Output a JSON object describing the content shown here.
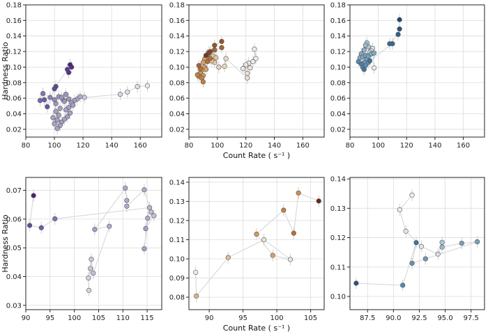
{
  "chart_data": [
    {
      "type": "scatter",
      "xlabel": "",
      "ylabel": "Hardness Ratio",
      "xlim": [
        80,
        175
      ],
      "ylim": [
        0.01,
        0.18
      ],
      "xticks": [
        80,
        100,
        120,
        140,
        160
      ],
      "yticks": [
        0.02,
        0.04,
        0.06,
        0.08,
        0.1,
        0.12,
        0.14,
        0.16,
        0.18
      ],
      "x_tick_labels": [
        "80",
        "100",
        "120",
        "140",
        "160"
      ],
      "y_tick_labels": [
        "0.02",
        "0.04",
        "0.06",
        "0.08",
        "0.10",
        "0.12",
        "0.14",
        "0.16",
        "0.18"
      ],
      "colormap": [
        "#e8e8ee",
        "#a8a5c8",
        "#6b5aa8",
        "#4a2380"
      ],
      "connected": true,
      "points": [
        {
          "x": 165,
          "y": 0.076,
          "c": 0.0
        },
        {
          "x": 158,
          "y": 0.075,
          "c": 0.05
        },
        {
          "x": 151,
          "y": 0.068,
          "c": 0.05
        },
        {
          "x": 146,
          "y": 0.065,
          "c": 0.08
        },
        {
          "x": 121,
          "y": 0.061,
          "c": 0.15
        },
        {
          "x": 116,
          "y": 0.059,
          "c": 0.3
        },
        {
          "x": 118,
          "y": 0.062,
          "c": 0.3
        },
        {
          "x": 114,
          "y": 0.057,
          "c": 0.35
        },
        {
          "x": 112,
          "y": 0.054,
          "c": 0.35
        },
        {
          "x": 110,
          "y": 0.048,
          "c": 0.35
        },
        {
          "x": 113,
          "y": 0.051,
          "c": 0.35
        },
        {
          "x": 108,
          "y": 0.045,
          "c": 0.35
        },
        {
          "x": 111,
          "y": 0.041,
          "c": 0.35
        },
        {
          "x": 109,
          "y": 0.036,
          "c": 0.35
        },
        {
          "x": 105,
          "y": 0.029,
          "c": 0.35
        },
        {
          "x": 107,
          "y": 0.033,
          "c": 0.35
        },
        {
          "x": 104,
          "y": 0.025,
          "c": 0.35
        },
        {
          "x": 102,
          "y": 0.021,
          "c": 0.35
        },
        {
          "x": 103,
          "y": 0.038,
          "c": 0.35
        },
        {
          "x": 101,
          "y": 0.043,
          "c": 0.35
        },
        {
          "x": 104,
          "y": 0.047,
          "c": 0.35
        },
        {
          "x": 102,
          "y": 0.032,
          "c": 0.35
        },
        {
          "x": 100,
          "y": 0.027,
          "c": 0.35
        },
        {
          "x": 99,
          "y": 0.035,
          "c": 0.35
        },
        {
          "x": 101,
          "y": 0.053,
          "c": 0.4
        },
        {
          "x": 103,
          "y": 0.062,
          "c": 0.4
        },
        {
          "x": 106,
          "y": 0.058,
          "c": 0.4
        },
        {
          "x": 108,
          "y": 0.065,
          "c": 0.4
        },
        {
          "x": 110,
          "y": 0.059,
          "c": 0.4
        },
        {
          "x": 107,
          "y": 0.056,
          "c": 0.4
        },
        {
          "x": 105,
          "y": 0.061,
          "c": 0.4
        },
        {
          "x": 100,
          "y": 0.058,
          "c": 0.45
        },
        {
          "x": 97,
          "y": 0.061,
          "c": 0.5
        },
        {
          "x": 92,
          "y": 0.066,
          "c": 0.55
        },
        {
          "x": 90,
          "y": 0.057,
          "c": 0.6
        },
        {
          "x": 93,
          "y": 0.058,
          "c": 0.65
        },
        {
          "x": 95,
          "y": 0.049,
          "c": 0.7
        },
        {
          "x": 100,
          "y": 0.072,
          "c": 0.75
        },
        {
          "x": 101,
          "y": 0.075,
          "c": 0.8
        },
        {
          "x": 109,
          "y": 0.097,
          "c": 0.85
        },
        {
          "x": 110,
          "y": 0.093,
          "c": 0.9
        },
        {
          "x": 112,
          "y": 0.1,
          "c": 0.95
        },
        {
          "x": 111,
          "y": 0.103,
          "c": 1.0
        }
      ]
    },
    {
      "type": "scatter",
      "xlabel": "Count Rate ( s⁻¹ )",
      "ylabel": "",
      "xlim": [
        80,
        175
      ],
      "ylim": [
        0.01,
        0.18
      ],
      "xticks": [
        80,
        100,
        120,
        140,
        160
      ],
      "yticks": [
        0.02,
        0.04,
        0.06,
        0.08,
        0.1,
        0.12,
        0.14,
        0.16,
        0.18
      ],
      "x_tick_labels": [
        "80",
        "100",
        "120",
        "140",
        "160"
      ],
      "y_tick_labels": [
        "0.02",
        "0.04",
        "0.06",
        "0.08",
        "0.10",
        "0.12",
        "0.14",
        "0.16",
        "0.18"
      ],
      "colormap": [
        "#ececec",
        "#e8c9a4",
        "#d08a45",
        "#6a2812"
      ],
      "connected": true,
      "points": [
        {
          "x": 126,
          "y": 0.123,
          "c": 0.0
        },
        {
          "x": 127,
          "y": 0.111,
          "c": 0.0
        },
        {
          "x": 125,
          "y": 0.107,
          "c": 0.0
        },
        {
          "x": 122,
          "y": 0.105,
          "c": 0.05
        },
        {
          "x": 120,
          "y": 0.103,
          "c": 0.05
        },
        {
          "x": 123,
          "y": 0.099,
          "c": 0.05
        },
        {
          "x": 118,
          "y": 0.098,
          "c": 0.05
        },
        {
          "x": 121,
          "y": 0.092,
          "c": 0.1
        },
        {
          "x": 121,
          "y": 0.086,
          "c": 0.1
        },
        {
          "x": 106,
          "y": 0.111,
          "c": 0.2
        },
        {
          "x": 105,
          "y": 0.101,
          "c": 0.2
        },
        {
          "x": 101,
          "y": 0.1,
          "c": 0.25
        },
        {
          "x": 98,
          "y": 0.106,
          "c": 0.3
        },
        {
          "x": 96,
          "y": 0.108,
          "c": 0.35
        },
        {
          "x": 97,
          "y": 0.114,
          "c": 0.35
        },
        {
          "x": 99,
          "y": 0.112,
          "c": 0.35
        },
        {
          "x": 94,
          "y": 0.119,
          "c": 0.5
        },
        {
          "x": 93,
          "y": 0.116,
          "c": 0.5
        },
        {
          "x": 92,
          "y": 0.113,
          "c": 0.5
        },
        {
          "x": 91,
          "y": 0.11,
          "c": 0.55
        },
        {
          "x": 90,
          "y": 0.106,
          "c": 0.55
        },
        {
          "x": 91,
          "y": 0.1,
          "c": 0.55
        },
        {
          "x": 92,
          "y": 0.097,
          "c": 0.55
        },
        {
          "x": 89,
          "y": 0.096,
          "c": 0.6
        },
        {
          "x": 88,
          "y": 0.092,
          "c": 0.6
        },
        {
          "x": 90,
          "y": 0.089,
          "c": 0.6
        },
        {
          "x": 87,
          "y": 0.088,
          "c": 0.65
        },
        {
          "x": 89,
          "y": 0.086,
          "c": 0.7
        },
        {
          "x": 90,
          "y": 0.081,
          "c": 0.7
        },
        {
          "x": 86,
          "y": 0.09,
          "c": 0.7
        },
        {
          "x": 88,
          "y": 0.098,
          "c": 0.75
        },
        {
          "x": 87,
          "y": 0.102,
          "c": 0.8
        },
        {
          "x": 93,
          "y": 0.107,
          "c": 0.75
        },
        {
          "x": 95,
          "y": 0.111,
          "c": 0.75
        },
        {
          "x": 98,
          "y": 0.122,
          "c": 0.8
        },
        {
          "x": 103,
          "y": 0.125,
          "c": 0.8
        },
        {
          "x": 103,
          "y": 0.133,
          "c": 0.85
        },
        {
          "x": 98,
          "y": 0.128,
          "c": 0.85
        },
        {
          "x": 94,
          "y": 0.118,
          "c": 0.9
        },
        {
          "x": 92,
          "y": 0.115,
          "c": 0.95
        },
        {
          "x": 95,
          "y": 0.12,
          "c": 0.9
        }
      ]
    },
    {
      "type": "scatter",
      "xlabel": "",
      "ylabel": "",
      "xlim": [
        80,
        175
      ],
      "ylim": [
        0.01,
        0.18
      ],
      "xticks": [
        80,
        100,
        120,
        140,
        160
      ],
      "yticks": [
        0.02,
        0.04,
        0.06,
        0.08,
        0.1,
        0.12,
        0.14,
        0.16,
        0.18
      ],
      "x_tick_labels": [
        "80",
        "100",
        "120",
        "140",
        "160"
      ],
      "y_tick_labels": [
        "0.02",
        "0.04",
        "0.06",
        "0.08",
        "0.10",
        "0.12",
        "0.14",
        "0.16",
        "0.18"
      ],
      "colormap": [
        "#ececec",
        "#a9c4d6",
        "#5b8fb5",
        "#1e4a78"
      ],
      "connected": true,
      "points": [
        {
          "x": 97,
          "y": 0.099,
          "c": 0.0
        },
        {
          "x": 96,
          "y": 0.124,
          "c": 0.05
        },
        {
          "x": 95,
          "y": 0.121,
          "c": 0.1
        },
        {
          "x": 94,
          "y": 0.119,
          "c": 0.2
        },
        {
          "x": 93,
          "y": 0.126,
          "c": 0.3
        },
        {
          "x": 92,
          "y": 0.131,
          "c": 0.35
        },
        {
          "x": 91,
          "y": 0.128,
          "c": 0.4
        },
        {
          "x": 90,
          "y": 0.122,
          "c": 0.45
        },
        {
          "x": 88,
          "y": 0.117,
          "c": 0.5
        },
        {
          "x": 87,
          "y": 0.112,
          "c": 0.5
        },
        {
          "x": 89,
          "y": 0.113,
          "c": 0.55
        },
        {
          "x": 91,
          "y": 0.115,
          "c": 0.55
        },
        {
          "x": 92,
          "y": 0.11,
          "c": 0.55
        },
        {
          "x": 93,
          "y": 0.114,
          "c": 0.55
        },
        {
          "x": 95,
          "y": 0.117,
          "c": 0.5
        },
        {
          "x": 97,
          "y": 0.118,
          "c": 0.5
        },
        {
          "x": 90,
          "y": 0.106,
          "c": 0.6
        },
        {
          "x": 91,
          "y": 0.102,
          "c": 0.65
        },
        {
          "x": 93,
          "y": 0.106,
          "c": 0.65
        },
        {
          "x": 89,
          "y": 0.1,
          "c": 0.7
        },
        {
          "x": 86,
          "y": 0.107,
          "c": 0.7
        },
        {
          "x": 88,
          "y": 0.104,
          "c": 0.75
        },
        {
          "x": 90,
          "y": 0.097,
          "c": 0.8
        },
        {
          "x": 94,
          "y": 0.108,
          "c": 0.8
        },
        {
          "x": 110,
          "y": 0.13,
          "c": 0.85
        },
        {
          "x": 108,
          "y": 0.13,
          "c": 0.85
        },
        {
          "x": 114,
          "y": 0.142,
          "c": 0.9
        },
        {
          "x": 115,
          "y": 0.149,
          "c": 0.95
        },
        {
          "x": 115,
          "y": 0.161,
          "c": 1.0
        }
      ]
    },
    {
      "type": "scatter",
      "xlabel": "",
      "ylabel": "Hardness Ratio",
      "xlim": [
        90,
        118
      ],
      "ylim": [
        0.0285,
        0.0745
      ],
      "xticks": [
        90,
        95,
        100,
        105,
        110,
        115
      ],
      "yticks": [
        0.03,
        0.04,
        0.05,
        0.06,
        0.07
      ],
      "x_tick_labels": [
        "90",
        "95",
        "100",
        "105",
        "110",
        "115"
      ],
      "y_tick_labels": [
        "0.03",
        "0.04",
        "0.05",
        "0.06",
        "0.07"
      ],
      "colormap": [
        "#e8e8ee",
        "#a8a5c8",
        "#6b5aa8",
        "#4a2380"
      ],
      "connected": true,
      "points": [
        {
          "x": 103.0,
          "y": 0.0352,
          "c": 0.1
        },
        {
          "x": 102.9,
          "y": 0.0395,
          "c": 0.1
        },
        {
          "x": 103.3,
          "y": 0.0428,
          "c": 0.15
        },
        {
          "x": 103.5,
          "y": 0.046,
          "c": 0.15
        },
        {
          "x": 103.9,
          "y": 0.0412,
          "c": 0.2
        },
        {
          "x": 107.2,
          "y": 0.0575,
          "c": 0.3
        },
        {
          "x": 104.2,
          "y": 0.0564,
          "c": 0.35
        },
        {
          "x": 110.5,
          "y": 0.0708,
          "c": 0.3
        },
        {
          "x": 110.8,
          "y": 0.0665,
          "c": 0.3
        },
        {
          "x": 110.8,
          "y": 0.0645,
          "c": 0.3
        },
        {
          "x": 114.4,
          "y": 0.0702,
          "c": 0.3
        },
        {
          "x": 115.8,
          "y": 0.0625,
          "c": 0.2
        },
        {
          "x": 116.4,
          "y": 0.0612,
          "c": 0.2
        },
        {
          "x": 114.7,
          "y": 0.0567,
          "c": 0.35
        },
        {
          "x": 115.1,
          "y": 0.0603,
          "c": 0.3
        },
        {
          "x": 114.4,
          "y": 0.0497,
          "c": 0.35
        },
        {
          "x": 115.5,
          "y": 0.064,
          "c": 0.25
        },
        {
          "x": 96.0,
          "y": 0.0601,
          "c": 0.55
        },
        {
          "x": 93.2,
          "y": 0.057,
          "c": 0.65
        },
        {
          "x": 90.8,
          "y": 0.0578,
          "c": 0.75
        },
        {
          "x": 91.6,
          "y": 0.0682,
          "c": 1.0
        }
      ]
    },
    {
      "type": "scatter",
      "xlabel": "Count Rate ( s⁻¹ )",
      "ylabel": "",
      "xlim": [
        87,
        107
      ],
      "ylim": [
        0.0735,
        0.1425
      ],
      "xticks": [
        90,
        95,
        100,
        105
      ],
      "yticks": [
        0.08,
        0.09,
        0.1,
        0.11,
        0.12,
        0.13,
        0.14
      ],
      "x_tick_labels": [
        "90",
        "95",
        "100",
        "105"
      ],
      "y_tick_labels": [
        "0.08",
        "0.09",
        "0.10",
        "0.11",
        "0.12",
        "0.13",
        "0.14"
      ],
      "colormap": [
        "#ececec",
        "#e8c9a4",
        "#d08a45",
        "#6a2812"
      ],
      "connected": true,
      "points": [
        {
          "x": 88.0,
          "y": 0.093,
          "c": 0.0
        },
        {
          "x": 88.1,
          "y": 0.0806,
          "c": 0.45
        },
        {
          "x": 92.8,
          "y": 0.1007,
          "c": 0.4
        },
        {
          "x": 98.1,
          "y": 0.11,
          "c": 0.1
        },
        {
          "x": 102.0,
          "y": 0.0997,
          "c": 0.05
        },
        {
          "x": 99.4,
          "y": 0.1018,
          "c": 0.55
        },
        {
          "x": 97.0,
          "y": 0.1129,
          "c": 0.6
        },
        {
          "x": 101.0,
          "y": 0.1254,
          "c": 0.7
        },
        {
          "x": 102.5,
          "y": 0.1134,
          "c": 0.75
        },
        {
          "x": 103.2,
          "y": 0.1344,
          "c": 0.65
        },
        {
          "x": 106.2,
          "y": 0.1302,
          "c": 1.0
        }
      ]
    },
    {
      "type": "scatter",
      "xlabel": "",
      "ylabel": "",
      "xlim": [
        85.8,
        98.8
      ],
      "ylim": [
        0.0955,
        0.1405
      ],
      "xticks": [
        87.5,
        90.0,
        92.5,
        95.0,
        97.5
      ],
      "yticks": [
        0.1,
        0.11,
        0.12,
        0.13,
        0.14
      ],
      "x_tick_labels": [
        "87.5",
        "90.0",
        "92.5",
        "95.0",
        "97.5"
      ],
      "y_tick_labels": [
        "0.10",
        "0.11",
        "0.12",
        "0.13",
        "0.14"
      ],
      "colormap": [
        "#ececec",
        "#a9c4d6",
        "#5b8fb5",
        "#1e4a78"
      ],
      "connected": true,
      "points": [
        {
          "x": 91.8,
          "y": 0.1345,
          "c": 0.0
        },
        {
          "x": 90.6,
          "y": 0.1295,
          "c": 0.0
        },
        {
          "x": 91.2,
          "y": 0.1222,
          "c": 0.05
        },
        {
          "x": 92.7,
          "y": 0.117,
          "c": 0.05
        },
        {
          "x": 94.3,
          "y": 0.1144,
          "c": 0.1
        },
        {
          "x": 94.7,
          "y": 0.1184,
          "c": 0.3
        },
        {
          "x": 94.7,
          "y": 0.1168,
          "c": 0.4
        },
        {
          "x": 96.6,
          "y": 0.1181,
          "c": 0.55
        },
        {
          "x": 98.1,
          "y": 0.1186,
          "c": 0.55
        },
        {
          "x": 93.1,
          "y": 0.1128,
          "c": 0.6
        },
        {
          "x": 91.8,
          "y": 0.1113,
          "c": 0.65
        },
        {
          "x": 92.2,
          "y": 0.1183,
          "c": 0.8
        },
        {
          "x": 90.9,
          "y": 0.1038,
          "c": 0.7
        },
        {
          "x": 86.4,
          "y": 0.1045,
          "c": 0.95
        }
      ]
    }
  ]
}
